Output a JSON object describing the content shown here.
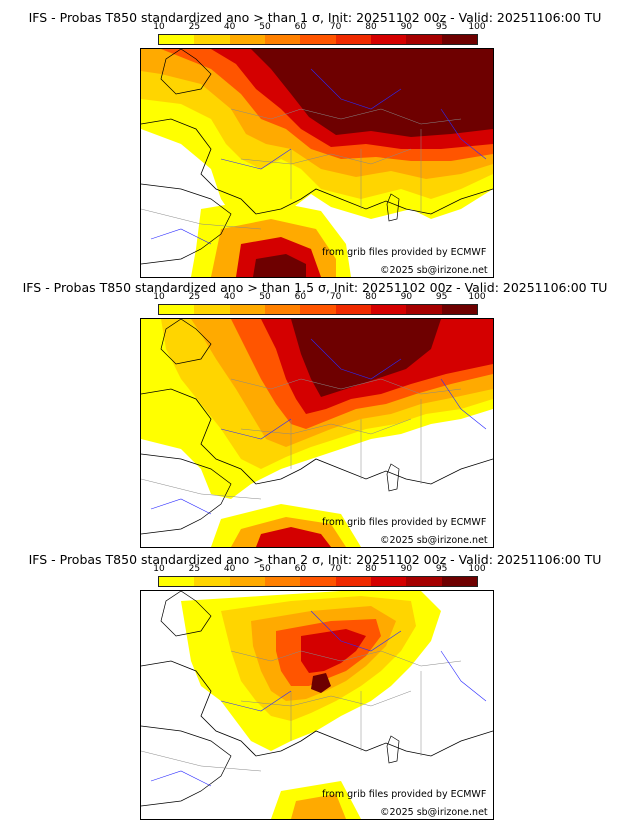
{
  "colors": {
    "levels": [
      "#ffff00",
      "#ffd500",
      "#ffaa00",
      "#ff8000",
      "#ff5500",
      "#ef2a00",
      "#d40000",
      "#a50000",
      "#6e0000"
    ],
    "coast": "#000000",
    "river": "#2a2aff",
    "border": "#888888"
  },
  "colorbar_ticks": [
    "10",
    "25",
    "40",
    "50",
    "60",
    "70",
    "80",
    "90",
    "95",
    "100"
  ],
  "credits": {
    "grib": "from grib files provided by ECMWF",
    "copyright": "©2025 sb@irizone.net"
  },
  "panels": [
    {
      "title": "IFS - Probas T850  standardized ano > than 1 σ, Init: 20251102 00z - Valid: 20251106:00 TU",
      "sigma": 1
    },
    {
      "title": "IFS - Probas T850  standardized ano > than 1.5 σ, Init: 20251102 00z - Valid: 20251106:00 TU",
      "sigma": 1.5
    },
    {
      "title": "IFS - Probas T850  standardized ano > than 2 σ, Init: 20251102 00z - Valid: 20251106:00 TU",
      "sigma": 2
    }
  ]
}
